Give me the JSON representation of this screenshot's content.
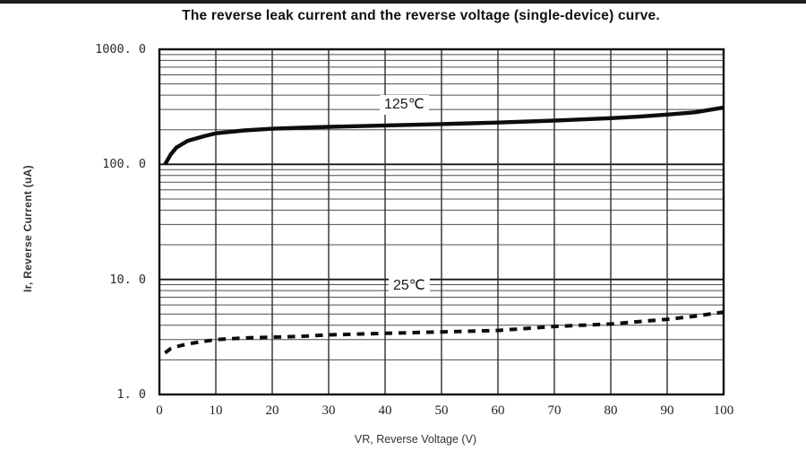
{
  "chart_data": {
    "type": "line",
    "title": "The reverse leak current and the reverse voltage (single-device) curve.",
    "xlabel": "VR, Reverse Voltage (V)",
    "ylabel": "Ir, Reverse Current (uA)",
    "x_range": [
      0,
      100
    ],
    "y_range": [
      1,
      1000
    ],
    "y_scale": "log",
    "grid": "log major+minor horizontal, major vertical",
    "legend_position": "inline-labels",
    "x_tick_values": [
      0,
      10,
      20,
      30,
      40,
      50,
      60,
      70,
      80,
      90,
      100
    ],
    "x_tick_labels": [
      "0",
      "10",
      "20",
      "30",
      "40",
      "50",
      "60",
      "70",
      "80",
      "90",
      "100"
    ],
    "y_tick_values": [
      1000,
      100,
      10,
      1
    ],
    "y_tick_labels": [
      "1000. 0",
      "100. 0",
      "10. 0",
      "1. 0"
    ],
    "colors": {
      "curve": "#0d0d0d",
      "grid_minor": "#4d4d4d",
      "grid_major": "#161616",
      "border": "#0f0f0f"
    },
    "series": [
      {
        "name": "125C",
        "label": "125℃",
        "style": "solid",
        "x": [
          1,
          2,
          3,
          5,
          8,
          10,
          15,
          20,
          25,
          30,
          40,
          50,
          60,
          70,
          80,
          85,
          90,
          95,
          100
        ],
        "values": [
          100,
          122,
          140,
          160,
          176,
          186,
          197,
          204,
          208,
          212,
          218,
          224,
          231,
          240,
          252,
          260,
          271,
          284,
          312
        ]
      },
      {
        "name": "25C",
        "label": "25℃",
        "style": "dashed",
        "x": [
          1,
          2,
          3,
          5,
          8,
          10,
          15,
          20,
          25,
          30,
          40,
          50,
          60,
          70,
          80,
          85,
          90,
          95,
          100
        ],
        "values": [
          2.3,
          2.5,
          2.6,
          2.75,
          2.9,
          3.0,
          3.1,
          3.15,
          3.2,
          3.3,
          3.4,
          3.5,
          3.6,
          3.9,
          4.1,
          4.3,
          4.5,
          4.8,
          5.2
        ]
      }
    ]
  }
}
